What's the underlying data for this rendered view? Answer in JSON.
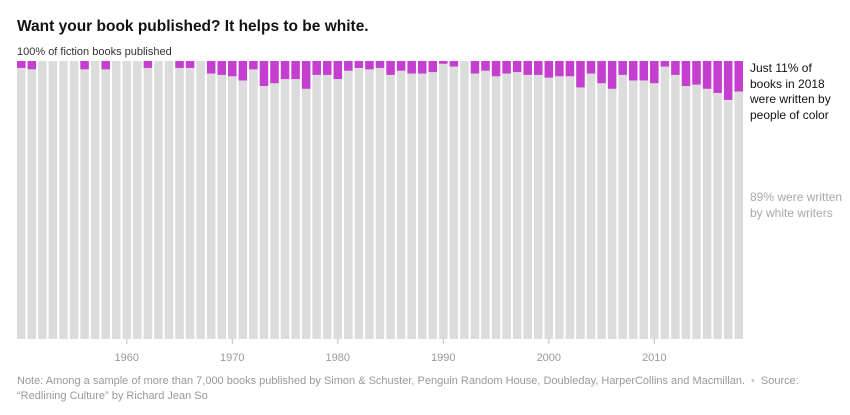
{
  "header": {
    "title": "Want your book published? It helps to be white.",
    "subtitle": "100% of fiction books published"
  },
  "annotations": {
    "poc": "Just 11% of books in 2018 were written by people of color",
    "white": "89% were written by white writers"
  },
  "footer": {
    "note": "Note: Among a sample of more than 7,000 books published by Simon & Schuster, Penguin Random House, Doubleday, HarperCollins and Macmillan.",
    "source": "Source: “Redlining Culture” by Richard Jean So"
  },
  "colors": {
    "people_of_color": "#c43ed0",
    "white_writers": "#dcdcdc"
  },
  "chart_data": {
    "type": "bar",
    "stacked": true,
    "xlim": [
      1950,
      2018
    ],
    "ylim": [
      0,
      100
    ],
    "x_ticks": [
      1960,
      1970,
      1980,
      1990,
      2000,
      2010
    ],
    "categories": [
      1950,
      1951,
      1952,
      1953,
      1954,
      1955,
      1956,
      1957,
      1958,
      1959,
      1960,
      1961,
      1962,
      1963,
      1964,
      1965,
      1966,
      1967,
      1968,
      1969,
      1970,
      1971,
      1972,
      1973,
      1974,
      1975,
      1976,
      1977,
      1978,
      1979,
      1980,
      1981,
      1982,
      1983,
      1984,
      1985,
      1986,
      1987,
      1988,
      1989,
      1990,
      1991,
      1992,
      1993,
      1994,
      1995,
      1996,
      1997,
      1998,
      1999,
      2000,
      2001,
      2002,
      2003,
      2004,
      2005,
      2006,
      2007,
      2008,
      2009,
      2010,
      2011,
      2012,
      2013,
      2014,
      2015,
      2016,
      2017,
      2018
    ],
    "series": [
      {
        "name": "people of color",
        "values": [
          2.5,
          3.0,
          0,
          0,
          0,
          0,
          3.0,
          0,
          3.0,
          0,
          0,
          0,
          2.5,
          0,
          0,
          2.5,
          2.5,
          0,
          4.5,
          5.0,
          5.5,
          7.0,
          3.0,
          9.0,
          8.0,
          6.5,
          6.5,
          10.0,
          5.0,
          5.0,
          6.5,
          3.5,
          2.5,
          3.0,
          2.5,
          5.0,
          3.5,
          4.5,
          4.5,
          4.0,
          1.0,
          2.0,
          0,
          4.5,
          3.5,
          5.5,
          4.5,
          4.0,
          5.0,
          5.0,
          6.0,
          5.5,
          5.5,
          9.5,
          4.5,
          8.0,
          10.0,
          5.0,
          7.0,
          7.0,
          8.0,
          2.0,
          5.0,
          9.0,
          8.5,
          10.0,
          11.5,
          14.0,
          11.0
        ]
      },
      {
        "name": "white writers",
        "values": [
          97.5,
          97.0,
          100,
          100,
          100,
          100,
          97.0,
          100,
          97.0,
          100,
          100,
          100,
          97.5,
          100,
          100,
          97.5,
          97.5,
          100,
          95.5,
          95.0,
          94.5,
          93.0,
          97.0,
          91.0,
          92.0,
          93.5,
          93.5,
          90.0,
          95.0,
          95.0,
          93.5,
          96.5,
          97.5,
          97.0,
          97.5,
          95.0,
          96.5,
          95.5,
          95.5,
          96.0,
          99.0,
          98.0,
          100,
          95.5,
          96.5,
          94.5,
          95.5,
          96.0,
          95.0,
          95.0,
          94.0,
          94.5,
          94.5,
          90.5,
          95.5,
          92.0,
          90.0,
          95.0,
          93.0,
          93.0,
          92.0,
          98.0,
          95.0,
          91.0,
          91.5,
          90.0,
          88.5,
          86.0,
          89.0
        ]
      }
    ]
  }
}
